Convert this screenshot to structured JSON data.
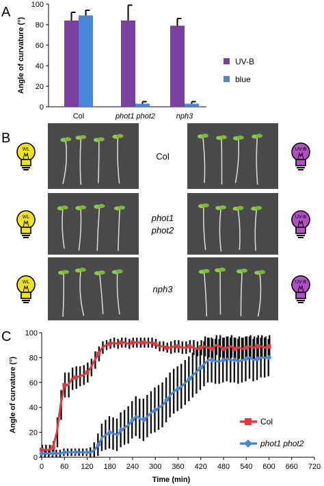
{
  "panels": {
    "a": {
      "letter": "A"
    },
    "b": {
      "letter": "B"
    },
    "c": {
      "letter": "C"
    }
  },
  "colors": {
    "uvb": "#7B3FA0",
    "blue": "#4A86D8",
    "col_line": "#E0393E",
    "phot_line": "#4A86D8",
    "bulb_wl": "#F2E21B",
    "bulb_uvb": "#B14FC5",
    "photo_bg": "#4a4a4a"
  },
  "chart_a": {
    "type": "bar",
    "ylabel": "Angle of curvature (°)",
    "categories": [
      "Col",
      "phot1 phot2",
      "nph3"
    ],
    "category_italic": [
      false,
      true,
      true
    ],
    "ylim": [
      0,
      100
    ],
    "yticks": [
      0,
      20,
      40,
      60,
      80,
      100
    ],
    "series": [
      {
        "name": "UV-B",
        "values": [
          84,
          84,
          79
        ],
        "errors": [
          8,
          15,
          7
        ]
      },
      {
        "name": "blue",
        "values": [
          89,
          3,
          3
        ],
        "errors": [
          5,
          2,
          2
        ]
      }
    ],
    "legend": "right"
  },
  "panel_b": {
    "rows": [
      {
        "label_lines": [
          "Col"
        ],
        "italic": false
      },
      {
        "label_lines": [
          "phot1",
          "phot2"
        ],
        "italic": true
      },
      {
        "label_lines": [
          "nph3"
        ],
        "italic": true
      }
    ],
    "left_bulb_text": "WL",
    "right_bulb_text": "UV-B"
  },
  "chart_data": {
    "type": "line",
    "xlabel": "Time (min)",
    "ylabel": "Angle of curvature (°)",
    "xlim": [
      0,
      720
    ],
    "ylim": [
      0,
      100
    ],
    "xticks": [
      0,
      60,
      120,
      180,
      240,
      300,
      360,
      420,
      480,
      540,
      600,
      660,
      720
    ],
    "yticks": [
      0,
      20,
      40,
      60,
      80,
      100
    ],
    "legend": "bottom-right",
    "series": [
      {
        "name": "Col",
        "marker": "square",
        "x": [
          0,
          10,
          20,
          30,
          40,
          50,
          60,
          70,
          80,
          90,
          100,
          110,
          120,
          130,
          140,
          150,
          160,
          170,
          180,
          190,
          200,
          210,
          220,
          230,
          240,
          250,
          260,
          270,
          280,
          290,
          300,
          310,
          320,
          330,
          340,
          350,
          360,
          370,
          380,
          390,
          400,
          410,
          420,
          430,
          440,
          450,
          460,
          470,
          480,
          490,
          500,
          510,
          520,
          530,
          540,
          550,
          560,
          570,
          580,
          590,
          600
        ],
        "y": [
          6,
          6,
          6,
          8,
          20,
          42,
          58,
          58,
          63,
          64,
          65,
          66,
          68,
          72,
          78,
          83,
          88,
          90,
          91,
          92,
          91,
          92,
          92,
          91,
          92,
          92,
          92,
          92,
          92,
          92,
          91,
          89,
          89,
          88,
          88,
          89,
          89,
          88,
          88,
          89,
          88,
          87,
          88,
          89,
          88,
          87,
          90,
          89,
          87,
          88,
          89,
          87,
          88,
          87,
          88,
          89,
          88,
          89,
          89,
          88,
          89
        ],
        "err": [
          4,
          4,
          4,
          5,
          12,
          12,
          10,
          10,
          9,
          9,
          8,
          8,
          8,
          7,
          7,
          6,
          5,
          4,
          4,
          4,
          4,
          4,
          4,
          4,
          4,
          4,
          4,
          4,
          4,
          4,
          4,
          4,
          4,
          4,
          5,
          5,
          5,
          5,
          5,
          5,
          6,
          6,
          6,
          8,
          8,
          8,
          8,
          9,
          9,
          9,
          9,
          9,
          9,
          9,
          9,
          9,
          9,
          9,
          9,
          9,
          9
        ]
      },
      {
        "name": "phot1 phot2",
        "marker": "diamond",
        "x": [
          0,
          10,
          20,
          30,
          40,
          50,
          60,
          70,
          80,
          90,
          100,
          110,
          120,
          130,
          140,
          150,
          160,
          170,
          180,
          190,
          200,
          210,
          220,
          230,
          240,
          250,
          260,
          270,
          280,
          290,
          300,
          310,
          320,
          330,
          340,
          350,
          360,
          370,
          380,
          390,
          400,
          410,
          420,
          430,
          440,
          450,
          460,
          470,
          480,
          490,
          500,
          510,
          520,
          530,
          540,
          550,
          560,
          570,
          580,
          590,
          600
        ],
        "y": [
          3,
          3,
          3,
          3,
          3,
          3,
          4,
          4,
          4,
          4,
          4,
          4,
          4,
          4,
          6,
          10,
          16,
          18,
          20,
          19,
          18,
          22,
          24,
          26,
          30,
          33,
          31,
          30,
          33,
          36,
          38,
          40,
          42,
          46,
          50,
          53,
          55,
          57,
          60,
          63,
          66,
          69,
          72,
          75,
          78,
          78,
          77,
          77,
          78,
          79,
          78,
          78,
          77,
          78,
          79,
          80,
          78,
          79,
          80,
          80,
          80
        ],
        "err": [
          3,
          3,
          3,
          3,
          3,
          3,
          3,
          3,
          3,
          3,
          3,
          3,
          3,
          4,
          6,
          9,
          11,
          12,
          13,
          13,
          13,
          14,
          14,
          15,
          15,
          16,
          16,
          17,
          17,
          17,
          18,
          18,
          18,
          18,
          18,
          18,
          18,
          18,
          18,
          18,
          18,
          18,
          18,
          18,
          18,
          18,
          18,
          18,
          18,
          18,
          18,
          18,
          18,
          18,
          18,
          17,
          17,
          17,
          16,
          16,
          15
        ]
      }
    ]
  }
}
